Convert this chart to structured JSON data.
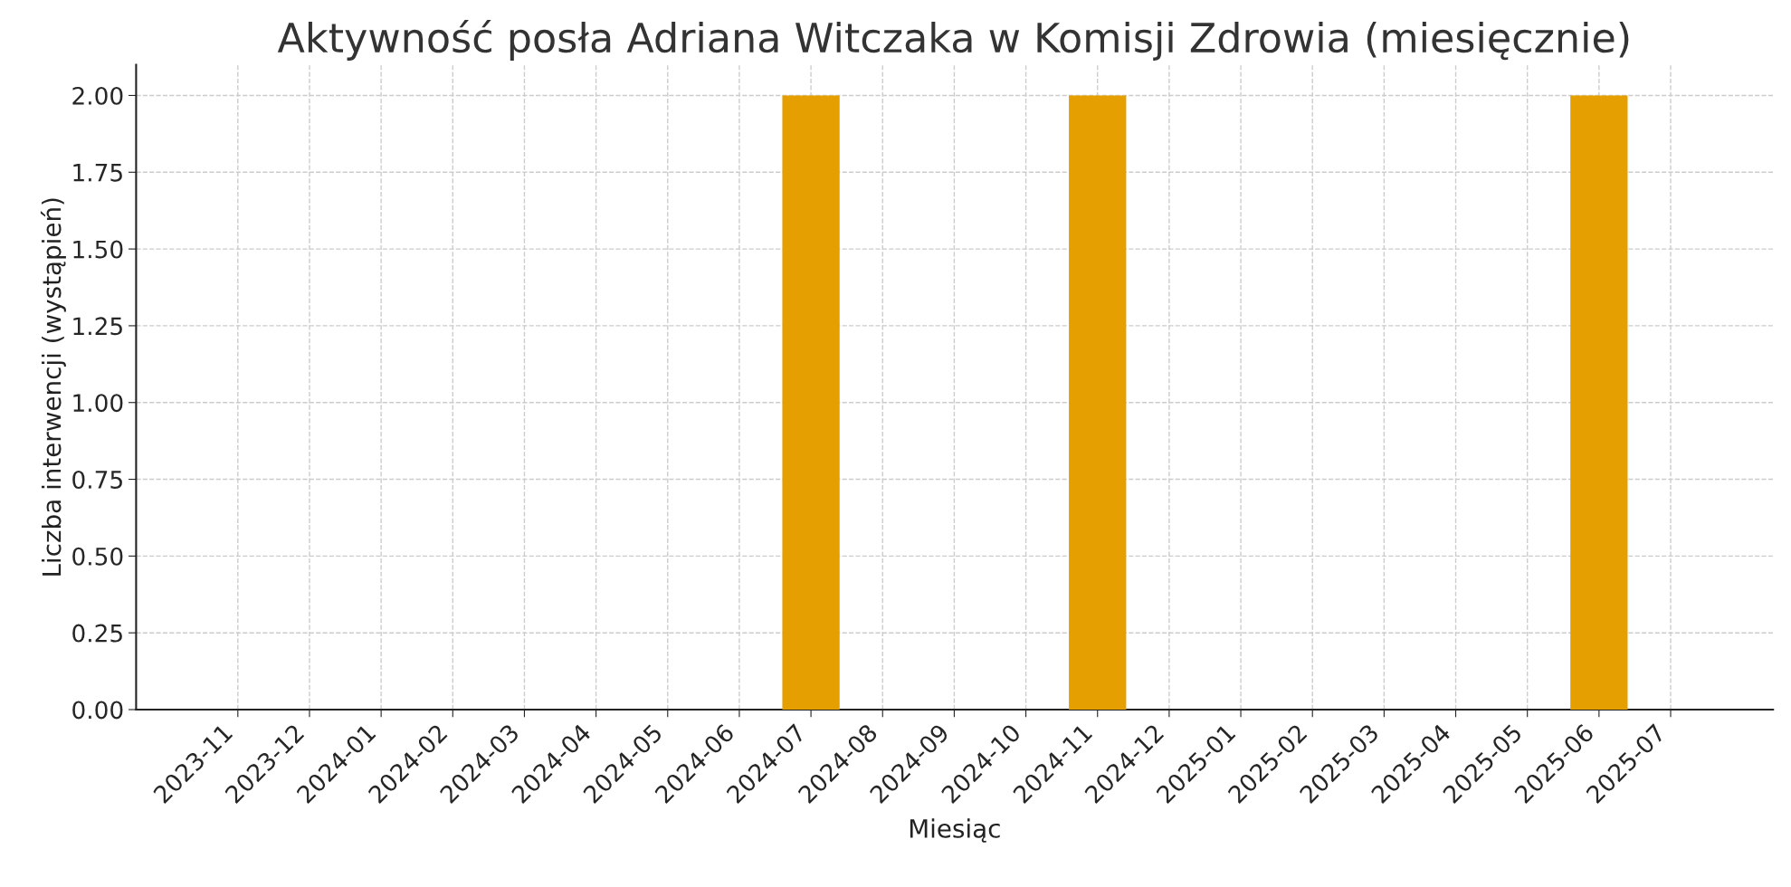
{
  "chart_data": {
    "type": "bar",
    "title": "Aktywność posła Adriana Witczaka w Komisji Zdrowia (miesięcznie)",
    "xlabel": "Miesiąc",
    "ylabel": "Liczba interwencji (wystąpień)",
    "categories": [
      "2023-11",
      "2023-12",
      "2024-01",
      "2024-02",
      "2024-03",
      "2024-04",
      "2024-05",
      "2024-06",
      "2024-07",
      "2024-08",
      "2024-09",
      "2024-10",
      "2024-11",
      "2024-12",
      "2025-01",
      "2025-02",
      "2025-03",
      "2025-04",
      "2025-05",
      "2025-06",
      "2025-07"
    ],
    "values": [
      0,
      0,
      0,
      0,
      0,
      0,
      0,
      0,
      2,
      0,
      0,
      0,
      2,
      0,
      0,
      0,
      0,
      0,
      0,
      2,
      0
    ],
    "color": "#e69f00",
    "ylim": [
      0,
      2.1
    ],
    "yticks": [
      {
        "value": 0,
        "label": "0.00"
      },
      {
        "value": 0.25,
        "label": "0.25"
      },
      {
        "value": 0.5,
        "label": "0.50"
      },
      {
        "value": 0.75,
        "label": "0.75"
      },
      {
        "value": 1,
        "label": "1.00"
      },
      {
        "value": 1.25,
        "label": "1.25"
      },
      {
        "value": 1.5,
        "label": "1.50"
      },
      {
        "value": 1.75,
        "label": "1.75"
      },
      {
        "value": 2,
        "label": "2.00"
      }
    ],
    "grid": true
  }
}
